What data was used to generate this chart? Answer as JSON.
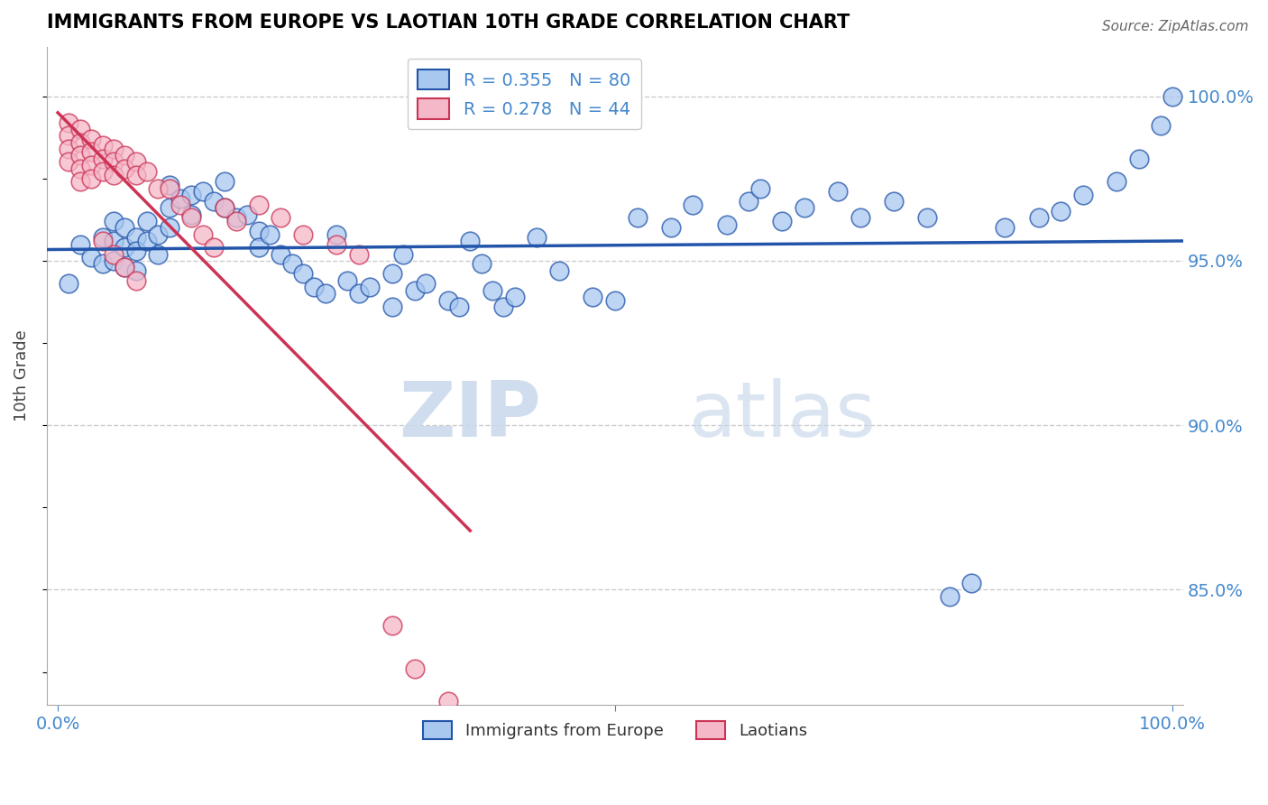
{
  "title": "IMMIGRANTS FROM EUROPE VS LAOTIAN 10TH GRADE CORRELATION CHART",
  "source": "Source: ZipAtlas.com",
  "ylabel": "10th Grade",
  "ylim": [
    0.815,
    1.015
  ],
  "xlim": [
    -0.01,
    1.01
  ],
  "blue_R": 0.355,
  "blue_N": 80,
  "pink_R": 0.278,
  "pink_N": 44,
  "blue_color": "#A8C8F0",
  "pink_color": "#F5B8C8",
  "blue_line_color": "#2255AA",
  "pink_line_color": "#CC3355",
  "legend_blue_label": "Immigrants from Europe",
  "legend_pink_label": "Laotians",
  "watermark_zip": "ZIP",
  "watermark_atlas": "atlas",
  "background_color": "#FFFFFF",
  "title_color": "#000000",
  "axis_color": "#4488CC",
  "grid_color": "#CCCCCC",
  "ytick_vals": [
    0.85,
    0.9,
    0.95,
    1.0
  ],
  "ytick_labels": [
    "85.0%",
    "90.0%",
    "95.0%",
    "100.0%"
  ],
  "blue_x": [
    0.01,
    0.02,
    0.03,
    0.04,
    0.04,
    0.05,
    0.05,
    0.05,
    0.06,
    0.06,
    0.06,
    0.07,
    0.07,
    0.07,
    0.08,
    0.08,
    0.09,
    0.09,
    0.1,
    0.1,
    0.1,
    0.11,
    0.12,
    0.12,
    0.13,
    0.14,
    0.15,
    0.15,
    0.16,
    0.17,
    0.18,
    0.18,
    0.19,
    0.2,
    0.21,
    0.22,
    0.23,
    0.24,
    0.25,
    0.26,
    0.27,
    0.28,
    0.3,
    0.3,
    0.31,
    0.32,
    0.33,
    0.35,
    0.36,
    0.37,
    0.38,
    0.39,
    0.4,
    0.41,
    0.43,
    0.45,
    0.48,
    0.5,
    0.52,
    0.55,
    0.57,
    0.6,
    0.62,
    0.63,
    0.65,
    0.67,
    0.7,
    0.72,
    0.75,
    0.78,
    0.8,
    0.82,
    0.85,
    0.88,
    0.9,
    0.92,
    0.95,
    0.97,
    0.99,
    1.0
  ],
  "blue_y": [
    0.943,
    0.955,
    0.951,
    0.957,
    0.949,
    0.962,
    0.956,
    0.95,
    0.96,
    0.954,
    0.948,
    0.957,
    0.953,
    0.947,
    0.962,
    0.956,
    0.958,
    0.952,
    0.973,
    0.966,
    0.96,
    0.969,
    0.97,
    0.964,
    0.971,
    0.968,
    0.974,
    0.966,
    0.963,
    0.964,
    0.959,
    0.954,
    0.958,
    0.952,
    0.949,
    0.946,
    0.942,
    0.94,
    0.958,
    0.944,
    0.94,
    0.942,
    0.946,
    0.936,
    0.952,
    0.941,
    0.943,
    0.938,
    0.936,
    0.956,
    0.949,
    0.941,
    0.936,
    0.939,
    0.957,
    0.947,
    0.939,
    0.938,
    0.963,
    0.96,
    0.967,
    0.961,
    0.968,
    0.972,
    0.962,
    0.966,
    0.971,
    0.963,
    0.968,
    0.963,
    0.848,
    0.852,
    0.96,
    0.963,
    0.965,
    0.97,
    0.974,
    0.981,
    0.991,
    1.0
  ],
  "pink_x": [
    0.01,
    0.01,
    0.01,
    0.01,
    0.02,
    0.02,
    0.02,
    0.02,
    0.02,
    0.03,
    0.03,
    0.03,
    0.03,
    0.04,
    0.04,
    0.04,
    0.05,
    0.05,
    0.05,
    0.06,
    0.06,
    0.07,
    0.07,
    0.08,
    0.09,
    0.1,
    0.11,
    0.12,
    0.13,
    0.14,
    0.15,
    0.16,
    0.18,
    0.2,
    0.22,
    0.25,
    0.27,
    0.3,
    0.32,
    0.35,
    0.04,
    0.05,
    0.06,
    0.07
  ],
  "pink_y": [
    0.992,
    0.988,
    0.984,
    0.98,
    0.99,
    0.986,
    0.982,
    0.978,
    0.974,
    0.987,
    0.983,
    0.979,
    0.975,
    0.985,
    0.981,
    0.977,
    0.984,
    0.98,
    0.976,
    0.982,
    0.978,
    0.98,
    0.976,
    0.977,
    0.972,
    0.972,
    0.967,
    0.963,
    0.958,
    0.954,
    0.966,
    0.962,
    0.967,
    0.963,
    0.958,
    0.955,
    0.952,
    0.839,
    0.826,
    0.816,
    0.956,
    0.952,
    0.948,
    0.944
  ]
}
